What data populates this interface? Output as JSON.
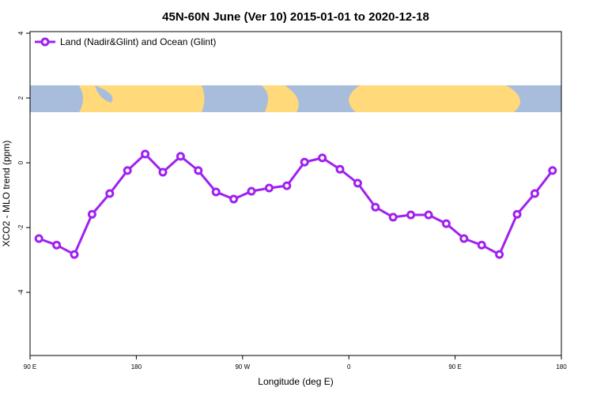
{
  "chart_data": {
    "type": "line",
    "title": "45N-60N June (Ver 10)   2015-01-01 to 2020-12-18",
    "x_label": "Longitude (deg E)",
    "y_label": "XCO2 - MLO trend (ppm)",
    "x": [
      97.5,
      112.5,
      127.5,
      142.5,
      157.5,
      172.5,
      187.5,
      202.5,
      217.5,
      232.5,
      247.5,
      262.5,
      277.5,
      292.5,
      307.5,
      322.5,
      337.5,
      352.5,
      367.5,
      382.5,
      397.5,
      412.5,
      427.5,
      442.5,
      457.5,
      472.5,
      487.5,
      502.5,
      517.5,
      532.5
    ],
    "series": [
      {
        "name": "Land (Nadir&Glint) and Ocean (Glint)",
        "color": "#a020f0",
        "values": [
          -2.34,
          -2.54,
          -2.83,
          -1.59,
          -0.95,
          -0.24,
          0.27,
          -0.29,
          0.2,
          -0.24,
          -0.9,
          -1.12,
          -0.88,
          -0.78,
          -0.71,
          0.02,
          0.15,
          -0.2,
          -0.63,
          -1.37,
          -1.68,
          -1.61,
          -1.61,
          -1.88,
          -2.34,
          -2.54,
          -2.83,
          -1.59,
          -0.95,
          -0.24
        ]
      }
    ],
    "xlim": [
      90,
      540
    ],
    "xticks": [
      {
        "value": 90,
        "label": "90 E"
      },
      180,
      {
        "value": 270,
        "label": "90 W"
      },
      {
        "value": 360,
        "label": "0"
      },
      {
        "value": 450,
        "label": "90 E"
      },
      {
        "value": 540,
        "label": "180"
      }
    ],
    "ylim": [
      -5.95,
      4.05
    ],
    "yticks": [
      4,
      2,
      0,
      -2,
      -4
    ],
    "legend": "top-left"
  }
}
